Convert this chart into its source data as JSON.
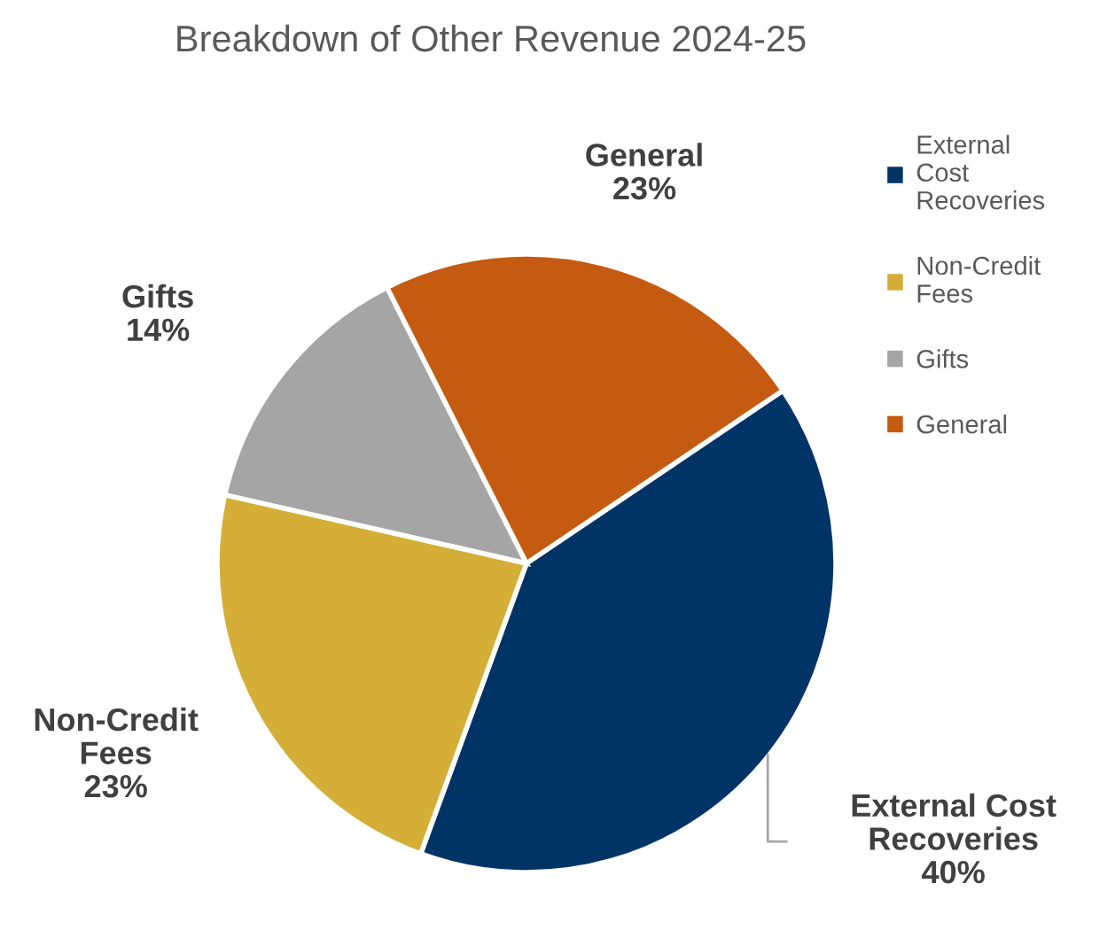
{
  "chart_data": {
    "type": "pie",
    "title": "Breakdown of Other Revenue 2024-25",
    "categories": [
      "External Cost Recoveries",
      "Non-Credit Fees",
      "Gifts",
      "General"
    ],
    "values": [
      40,
      23,
      14,
      23
    ],
    "colors": [
      "#003366",
      "#d4ae37",
      "#a5a5a5",
      "#c55a11"
    ],
    "value_labels": [
      "40%",
      "23%",
      "14%",
      "23%"
    ],
    "legend": "right"
  }
}
